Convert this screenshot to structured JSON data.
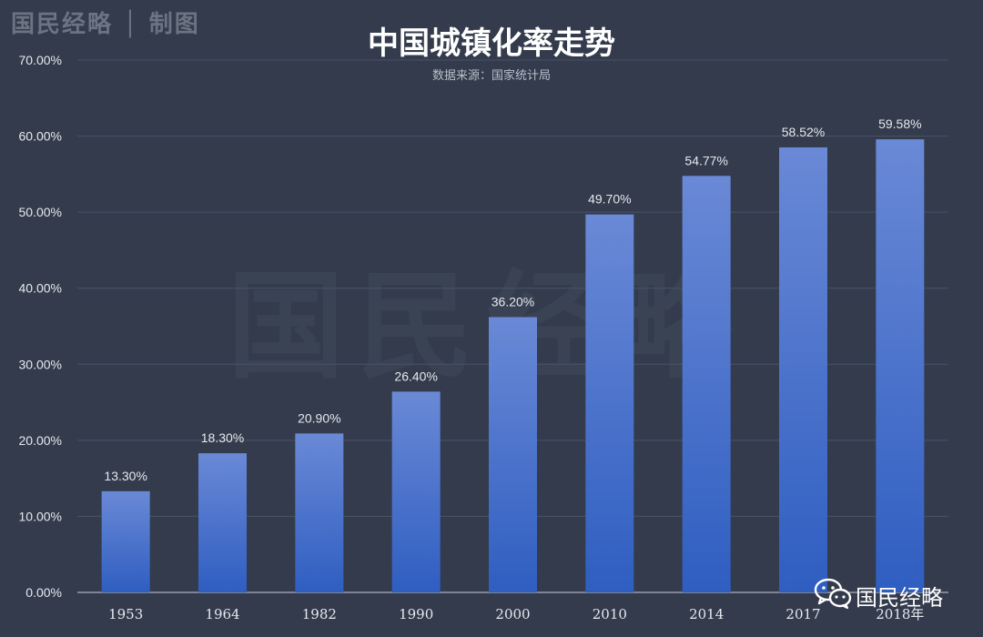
{
  "brand_top": "国民经略 │ 制图",
  "watermark": "国民经略",
  "brand_bottom": "国民经略",
  "colors": {
    "background": "#333b4c",
    "bar_top": "#6a89d6",
    "bar_bottom": "#2f5ec1",
    "grid": "#4a5366",
    "text": "#e6e8ee"
  },
  "icons": [
    "wechat-icon"
  ],
  "chart_data": {
    "type": "bar",
    "title": "中国城镇化率走势",
    "subtitle": "数据来源：国家统计局",
    "categories": [
      "1953",
      "1964",
      "1982",
      "1990",
      "2000",
      "2010",
      "2014",
      "2017",
      "2018年"
    ],
    "values": [
      13.3,
      18.3,
      20.9,
      26.4,
      36.2,
      49.7,
      54.77,
      58.52,
      59.58
    ],
    "value_labels": [
      "13.30%",
      "18.30%",
      "20.90%",
      "26.40%",
      "36.20%",
      "49.70%",
      "54.77%",
      "58.52%",
      "59.58%"
    ],
    "y_ticks": [
      "0.00%",
      "10.00%",
      "20.00%",
      "30.00%",
      "40.00%",
      "50.00%",
      "60.00%",
      "70.00%"
    ],
    "ylim": [
      0,
      70
    ],
    "grid": true,
    "legend": "none"
  }
}
